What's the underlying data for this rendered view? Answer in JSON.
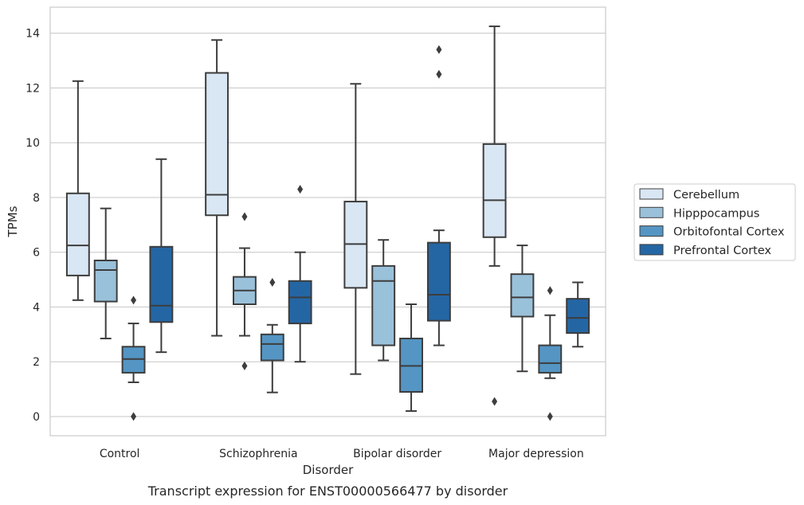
{
  "chart_data": {
    "type": "box",
    "caption": "Transcript expression for ENST00000566477 by disorder",
    "xlabel": "Disorder",
    "ylabel": "TPMs",
    "ylim": [
      -0.7,
      14.95
    ],
    "yticks": [
      0,
      2,
      4,
      6,
      8,
      10,
      12,
      14
    ],
    "grid": "horizontal",
    "legend_placement": "right",
    "categories": [
      "Control",
      "Schizophrenia",
      "Bipolar disorder",
      "Major depression"
    ],
    "series": [
      {
        "name": "Cerebellum",
        "color": "#d9e6f3",
        "boxes": [
          {
            "whislo": 4.25,
            "q1": 5.15,
            "med": 6.25,
            "q3": 8.15,
            "whishi": 12.25,
            "fliers": []
          },
          {
            "whislo": 2.95,
            "q1": 7.35,
            "med": 8.1,
            "q3": 12.55,
            "whishi": 13.75,
            "fliers": []
          },
          {
            "whislo": 1.55,
            "q1": 4.7,
            "med": 6.3,
            "q3": 7.85,
            "whishi": 12.15,
            "fliers": []
          },
          {
            "whislo": 5.5,
            "q1": 6.55,
            "med": 7.9,
            "q3": 9.95,
            "whishi": 14.25,
            "fliers": [
              0.55
            ]
          }
        ]
      },
      {
        "name": "Hipppocampus",
        "color": "#9ac1da",
        "boxes": [
          {
            "whislo": 2.85,
            "q1": 4.2,
            "med": 5.35,
            "q3": 5.7,
            "whishi": 7.6,
            "fliers": []
          },
          {
            "whislo": 2.95,
            "q1": 4.1,
            "med": 4.6,
            "q3": 5.1,
            "whishi": 6.15,
            "fliers": [
              7.3,
              1.85
            ]
          },
          {
            "whislo": 2.05,
            "q1": 2.6,
            "med": 4.95,
            "q3": 5.5,
            "whishi": 6.45,
            "fliers": []
          },
          {
            "whislo": 1.65,
            "q1": 3.65,
            "med": 4.35,
            "q3": 5.2,
            "whishi": 6.25,
            "fliers": []
          }
        ]
      },
      {
        "name": "Orbitofontal Cortex",
        "color": "#5495c4",
        "boxes": [
          {
            "whislo": 1.25,
            "q1": 1.6,
            "med": 2.1,
            "q3": 2.55,
            "whishi": 3.4,
            "fliers": [
              4.25,
              0.0
            ]
          },
          {
            "whislo": 0.88,
            "q1": 2.05,
            "med": 2.65,
            "q3": 3.0,
            "whishi": 3.35,
            "fliers": [
              4.9
            ]
          },
          {
            "whislo": 0.2,
            "q1": 0.9,
            "med": 1.85,
            "q3": 2.85,
            "whishi": 4.1,
            "fliers": []
          },
          {
            "whislo": 1.4,
            "q1": 1.6,
            "med": 1.95,
            "q3": 2.6,
            "whishi": 3.7,
            "fliers": [
              4.6,
              0.0
            ]
          }
        ]
      },
      {
        "name": "Prefrontal Cortex",
        "color": "#2466a4",
        "boxes": [
          {
            "whislo": 2.35,
            "q1": 3.45,
            "med": 4.05,
            "q3": 6.2,
            "whishi": 9.4,
            "fliers": []
          },
          {
            "whislo": 2.0,
            "q1": 3.4,
            "med": 4.35,
            "q3": 4.95,
            "whishi": 6.0,
            "fliers": [
              8.3
            ]
          },
          {
            "whislo": 2.6,
            "q1": 3.5,
            "med": 4.45,
            "q3": 6.35,
            "whishi": 6.8,
            "fliers": [
              13.4,
              12.5
            ]
          },
          {
            "whislo": 2.55,
            "q1": 3.05,
            "med": 3.6,
            "q3": 4.3,
            "whishi": 4.9,
            "fliers": []
          }
        ]
      }
    ]
  }
}
